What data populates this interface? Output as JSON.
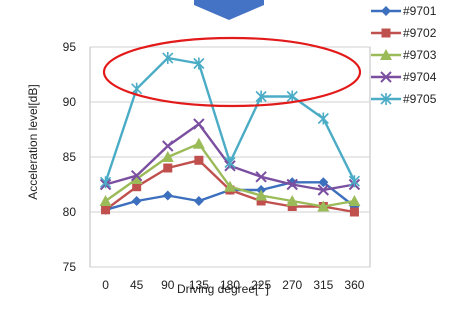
{
  "chart_data": {
    "type": "line",
    "xlabel": "Driving degree[˚ ]",
    "ylabel": "Acceleration level[dB]",
    "categories": [
      "0",
      "45",
      "90",
      "135",
      "180",
      "225",
      "270",
      "315",
      "360"
    ],
    "ylim": [
      75,
      95
    ],
    "yticks": [
      75,
      80,
      85,
      90,
      95
    ],
    "grid": true,
    "legend": "right",
    "series": [
      {
        "name": "#9701",
        "color": "#3c6fbe",
        "marker": "diamond",
        "values": [
          80.2,
          81.0,
          81.5,
          81.0,
          82.0,
          82.0,
          82.7,
          82.7,
          80.5
        ]
      },
      {
        "name": "#9702",
        "color": "#c0504d",
        "marker": "square",
        "values": [
          80.2,
          82.3,
          84.0,
          84.7,
          82.0,
          81.0,
          80.5,
          80.5,
          80.0
        ]
      },
      {
        "name": "#9703",
        "color": "#9bbb59",
        "marker": "triangle",
        "values": [
          81.0,
          83.0,
          85.0,
          86.2,
          82.3,
          81.5,
          81.0,
          80.5,
          81.0
        ]
      },
      {
        "name": "#9704",
        "color": "#7b4fa0",
        "marker": "x",
        "values": [
          82.5,
          83.3,
          86.0,
          88.0,
          84.2,
          83.2,
          82.5,
          82.0,
          82.5
        ]
      },
      {
        "name": "#9705",
        "color": "#4bacc6",
        "marker": "star",
        "values": [
          82.7,
          91.2,
          94.0,
          93.5,
          84.5,
          90.5,
          90.5,
          88.5,
          82.8
        ]
      }
    ]
  },
  "annotations": {
    "highlight_ellipse_color": "#e31a1a",
    "top_arrow_color": "#4472c4"
  }
}
